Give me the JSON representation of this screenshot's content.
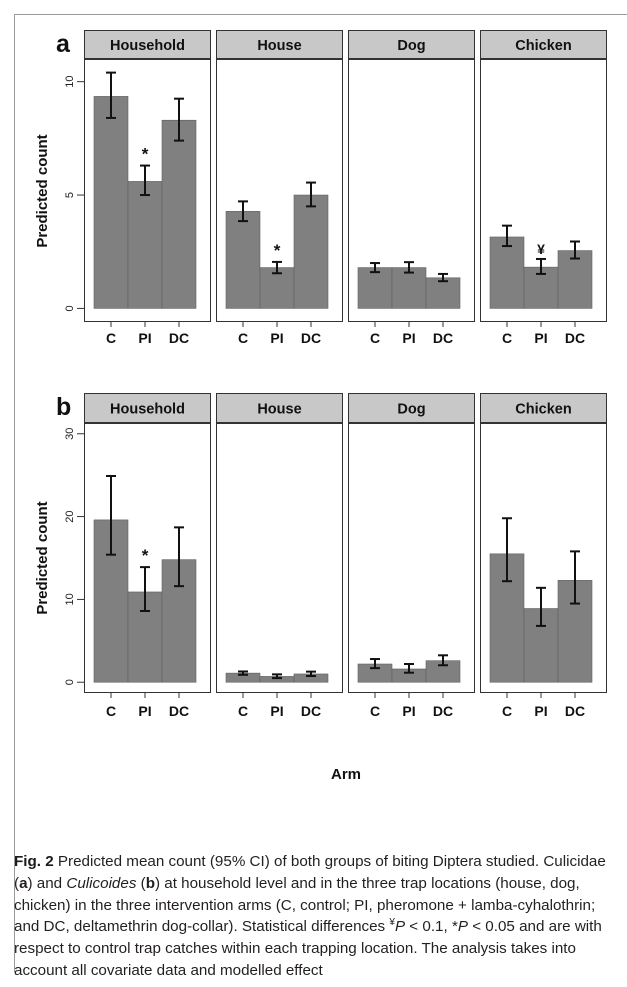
{
  "figure": {
    "x_title": "Arm",
    "panels": [
      {
        "letter": "a",
        "ylabel": "Predicted count",
        "yticks": [
          0,
          5,
          10
        ],
        "ylim": [
          -0.6,
          11.0
        ],
        "facets": [
          {
            "title": "Household",
            "categories": [
              "C",
              "PI",
              "DC"
            ],
            "values": [
              9.35,
              5.6,
              8.3
            ],
            "ci_low": [
              8.4,
              5.0,
              7.4
            ],
            "ci_high": [
              10.4,
              6.3,
              9.25
            ],
            "marks": [
              "",
              "*",
              ""
            ]
          },
          {
            "title": "House",
            "categories": [
              "C",
              "PI",
              "DC"
            ],
            "values": [
              4.28,
              1.8,
              5.0
            ],
            "ci_low": [
              3.85,
              1.55,
              4.5
            ],
            "ci_high": [
              4.72,
              2.05,
              5.55
            ],
            "marks": [
              "",
              "*",
              ""
            ]
          },
          {
            "title": "Dog",
            "categories": [
              "C",
              "PI",
              "DC"
            ],
            "values": [
              1.8,
              1.8,
              1.35
            ],
            "ci_low": [
              1.6,
              1.58,
              1.2
            ],
            "ci_high": [
              2.0,
              2.04,
              1.52
            ],
            "marks": [
              "",
              "",
              ""
            ]
          },
          {
            "title": "Chicken",
            "categories": [
              "C",
              "PI",
              "DC"
            ],
            "values": [
              3.15,
              1.82,
              2.55
            ],
            "ci_low": [
              2.75,
              1.52,
              2.2
            ],
            "ci_high": [
              3.65,
              2.18,
              2.95
            ],
            "marks": [
              "",
              "¥",
              ""
            ]
          }
        ]
      },
      {
        "letter": "b",
        "ylabel": "Predicted count",
        "yticks": [
          0,
          10,
          20,
          30
        ],
        "ylim": [
          -1.3,
          31.3
        ],
        "facets": [
          {
            "title": "Household",
            "categories": [
              "C",
              "PI",
              "DC"
            ],
            "values": [
              19.6,
              10.9,
              14.8
            ],
            "ci_low": [
              15.4,
              8.6,
              11.6
            ],
            "ci_high": [
              24.9,
              13.9,
              18.7
            ],
            "marks": [
              "",
              "*",
              ""
            ]
          },
          {
            "title": "House",
            "categories": [
              "C",
              "PI",
              "DC"
            ],
            "values": [
              1.1,
              0.7,
              1.0
            ],
            "ci_low": [
              0.9,
              0.5,
              0.75
            ],
            "ci_high": [
              1.3,
              0.95,
              1.28
            ],
            "marks": [
              "",
              "",
              ""
            ]
          },
          {
            "title": "Dog",
            "categories": [
              "C",
              "PI",
              "DC"
            ],
            "values": [
              2.2,
              1.6,
              2.6
            ],
            "ci_low": [
              1.7,
              1.15,
              2.05
            ],
            "ci_high": [
              2.8,
              2.2,
              3.25
            ],
            "marks": [
              "",
              "",
              ""
            ]
          },
          {
            "title": "Chicken",
            "categories": [
              "C",
              "PI",
              "DC"
            ],
            "values": [
              15.5,
              8.9,
              12.3
            ],
            "ci_low": [
              12.2,
              6.8,
              9.5
            ],
            "ci_high": [
              19.8,
              11.4,
              15.8
            ],
            "marks": [
              "",
              "",
              ""
            ]
          }
        ]
      }
    ]
  },
  "chart_data": [
    {
      "type": "bar",
      "panel": "a",
      "ylabel": "Predicted count",
      "xlabel": "Arm",
      "ylim": [
        0,
        11
      ],
      "facets": [
        "Household",
        "House",
        "Dog",
        "Chicken"
      ],
      "categories": [
        "C",
        "PI",
        "DC"
      ],
      "series": [
        {
          "name": "Household",
          "values": [
            9.35,
            5.6,
            8.3
          ],
          "ci_low": [
            8.4,
            5.0,
            7.4
          ],
          "ci_high": [
            10.4,
            6.3,
            9.25
          ]
        },
        {
          "name": "House",
          "values": [
            4.28,
            1.8,
            5.0
          ],
          "ci_low": [
            3.85,
            1.55,
            4.5
          ],
          "ci_high": [
            4.72,
            2.05,
            5.55
          ]
        },
        {
          "name": "Dog",
          "values": [
            1.8,
            1.8,
            1.35
          ],
          "ci_low": [
            1.6,
            1.58,
            1.2
          ],
          "ci_high": [
            2.0,
            2.04,
            1.52
          ]
        },
        {
          "name": "Chicken",
          "values": [
            3.15,
            1.82,
            2.55
          ],
          "ci_low": [
            2.75,
            1.52,
            2.2
          ],
          "ci_high": [
            3.65,
            2.18,
            2.95
          ]
        }
      ],
      "annotations": [
        "Household PI: *",
        "House PI: *",
        "Chicken PI: ¥"
      ]
    },
    {
      "type": "bar",
      "panel": "b",
      "ylabel": "Predicted count",
      "xlabel": "Arm",
      "ylim": [
        0,
        31
      ],
      "facets": [
        "Household",
        "House",
        "Dog",
        "Chicken"
      ],
      "categories": [
        "C",
        "PI",
        "DC"
      ],
      "series": [
        {
          "name": "Household",
          "values": [
            19.6,
            10.9,
            14.8
          ],
          "ci_low": [
            15.4,
            8.6,
            11.6
          ],
          "ci_high": [
            24.9,
            13.9,
            18.7
          ]
        },
        {
          "name": "House",
          "values": [
            1.1,
            0.7,
            1.0
          ],
          "ci_low": [
            0.9,
            0.5,
            0.75
          ],
          "ci_high": [
            1.3,
            0.95,
            1.28
          ]
        },
        {
          "name": "Dog",
          "values": [
            2.2,
            1.6,
            2.6
          ],
          "ci_low": [
            1.7,
            1.15,
            2.05
          ],
          "ci_high": [
            2.8,
            2.2,
            3.25
          ]
        },
        {
          "name": "Chicken",
          "values": [
            15.5,
            8.9,
            12.3
          ],
          "ci_low": [
            12.2,
            6.8,
            9.5
          ],
          "ci_high": [
            19.8,
            11.4,
            15.8
          ]
        }
      ],
      "annotations": [
        "Household PI: *"
      ]
    }
  ],
  "caption": {
    "label": "Fig. 2",
    "t1": "Predicted mean count (95% CI) of both groups of biting Diptera studied. Culicidae (",
    "a": "a",
    "t2": ") and ",
    "culicoides": "Culicoides",
    "t3": " (",
    "b": "b",
    "t4": ") at household level and in the three trap locations (house, dog, chicken) in the three intervention arms (C, control; PI, pheromone + lamba-cyhalothrin; and DC, deltamethrin dog-collar). Statistical differences ",
    "yen": "¥",
    "p1": "P",
    "t5": " < 0.1, *",
    "p2": "P",
    "t6": " < 0.05 and are with respect to control trap catches within each trapping location. The analysis takes into account all covariate data and modelled effect"
  }
}
